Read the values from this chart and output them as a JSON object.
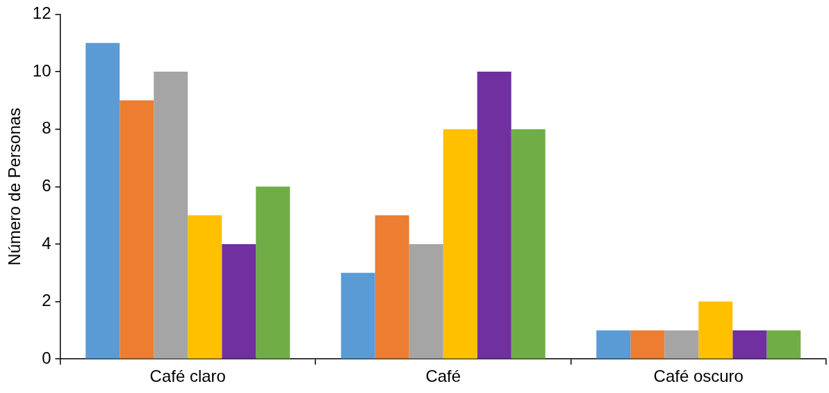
{
  "chart_data": {
    "type": "bar",
    "ylabel": "Número de Personas",
    "categories": [
      "Café claro",
      "Café",
      "Café oscuro"
    ],
    "series": [
      {
        "color": "#5b9bd5",
        "values": [
          11,
          3,
          1
        ]
      },
      {
        "color": "#ed7d31",
        "values": [
          9,
          5,
          1
        ]
      },
      {
        "color": "#a5a5a5",
        "values": [
          10,
          4,
          1
        ]
      },
      {
        "color": "#ffc000",
        "values": [
          5,
          8,
          2
        ]
      },
      {
        "color": "#7030a0",
        "values": [
          4,
          10,
          1
        ]
      },
      {
        "color": "#70ad47",
        "values": [
          6,
          8,
          1
        ]
      }
    ],
    "ylim": [
      0,
      12
    ],
    "yticks": [
      0,
      2,
      4,
      6,
      8,
      10,
      12
    ],
    "grid": false,
    "legend": false
  }
}
